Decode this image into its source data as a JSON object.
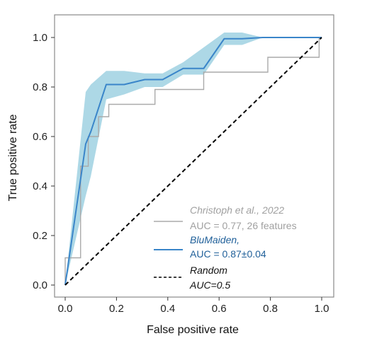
{
  "chart_data": {
    "type": "line",
    "xlabel": "False positive rate",
    "ylabel": "True positive rate",
    "xlim": [
      -0.04,
      1.05
    ],
    "ylim": [
      -0.04,
      1.06
    ],
    "x_ticks": [
      0.0,
      0.2,
      0.4,
      0.6,
      0.8,
      1.0
    ],
    "x_tick_labels": [
      "0.0",
      "0.2",
      "0.4",
      "0.6",
      "0.8",
      "1.0"
    ],
    "y_ticks": [
      0.0,
      0.2,
      0.4,
      0.6,
      0.8,
      1.0
    ],
    "y_tick_labels": [
      "0.0",
      "0.2",
      "0.4",
      "0.6",
      "0.8",
      "1.0"
    ],
    "grid": false,
    "legend_position": "lower-right",
    "series": [
      {
        "name": "Christoph et al., 2022",
        "legend_line2": "AUC = 0.77, 26 features",
        "style": "step",
        "color": "#aaaaaa",
        "x": [
          0.0,
          0.0,
          0.06,
          0.06,
          0.09,
          0.09,
          0.13,
          0.13,
          0.17,
          0.17,
          0.35,
          0.35,
          0.54,
          0.54,
          0.79,
          0.79,
          0.99,
          0.99,
          1.0
        ],
        "y": [
          0.0,
          0.11,
          0.11,
          0.48,
          0.48,
          0.6,
          0.6,
          0.68,
          0.68,
          0.73,
          0.73,
          0.79,
          0.79,
          0.86,
          0.86,
          0.92,
          0.92,
          1.0,
          1.0
        ]
      },
      {
        "name": "BluMaiden,",
        "legend_line2": "AUC = 0.87±0.04",
        "style": "line",
        "color": "#3a85c9",
        "band_color": "#add8e6",
        "x": [
          0.0,
          0.08,
          0.1,
          0.16,
          0.23,
          0.31,
          0.38,
          0.46,
          0.54,
          0.62,
          0.69,
          0.77,
          1.0
        ],
        "y": [
          0.0,
          0.57,
          0.62,
          0.81,
          0.81,
          0.83,
          0.83,
          0.875,
          0.875,
          0.995,
          0.995,
          1.0,
          1.0
        ],
        "y_lower": [
          0.0,
          0.36,
          0.44,
          0.75,
          0.77,
          0.8,
          0.8,
          0.85,
          0.85,
          0.97,
          0.97,
          1.0,
          1.0
        ],
        "y_upper": [
          0.0,
          0.78,
          0.81,
          0.865,
          0.865,
          0.855,
          0.855,
          0.9,
          0.96,
          1.02,
          1.02,
          1.0,
          1.0
        ]
      },
      {
        "name": "Random",
        "legend_line2": "AUC=0.5",
        "style": "dashed",
        "color": "#000000",
        "x": [
          0.0,
          1.0
        ],
        "y": [
          0.0,
          1.0
        ]
      }
    ]
  }
}
